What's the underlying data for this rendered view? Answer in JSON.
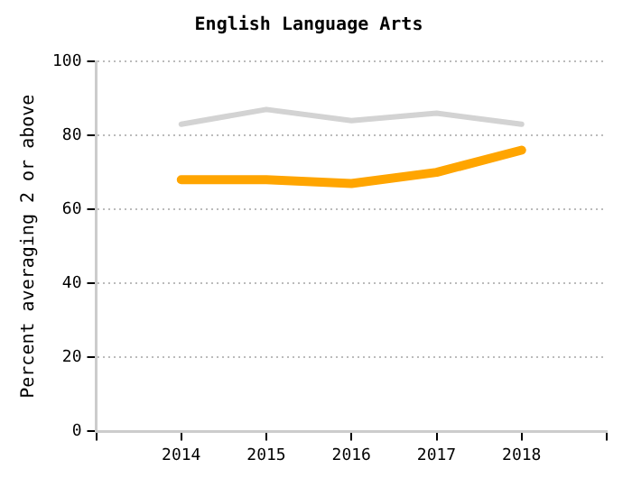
{
  "chart_data": {
    "type": "line",
    "title": "English Language Arts",
    "ylabel": "Percent averaging 2 or above",
    "x": [
      2014,
      2015,
      2016,
      2017,
      2018
    ],
    "series": [
      {
        "color": "#d3d3d3",
        "values": [
          83,
          87,
          84,
          86,
          83
        ]
      },
      {
        "color": "#ffa500",
        "values": [
          68,
          68,
          67,
          70,
          76
        ]
      }
    ],
    "xlim": [
      2013,
      2019
    ],
    "xticks": [
      {
        "value": 2013,
        "label": null
      },
      2014,
      2015,
      2016,
      2017,
      2018,
      {
        "value": 2019,
        "label": null
      }
    ],
    "ylim": [
      0,
      100
    ],
    "yticks": [
      0,
      20,
      40,
      60,
      80,
      100
    ],
    "grid": "y",
    "legend": false,
    "marker": "none",
    "line_style": "solid"
  }
}
